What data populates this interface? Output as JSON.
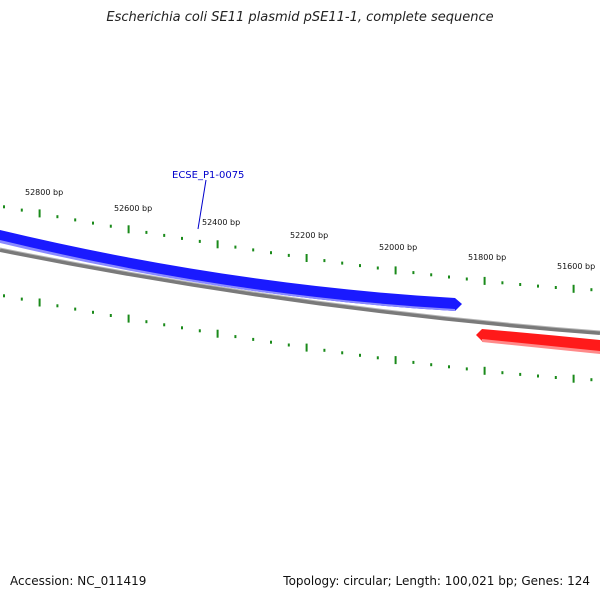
{
  "header": {
    "title": "Escherichia coli SE11 plasmid pSE11-1, complete sequence"
  },
  "map": {
    "bp_labels": [
      "52800 bp",
      "52600 bp",
      "52400 bp",
      "52200 bp",
      "52000 bp",
      "51800 bp",
      "51600 bp"
    ],
    "genes": [
      {
        "name": "ECSE_P1-0075",
        "strand": "forward",
        "color": "#1a1aff"
      },
      {
        "name": "",
        "strand": "reverse",
        "color": "#ff1a1a"
      }
    ],
    "backbone_color": "#7a7a7a",
    "tick_color": "#1a8a1a"
  },
  "footer": {
    "accession": "Accession: NC_011419",
    "summary": "Topology: circular; Length: 100,021 bp; Genes: 124"
  }
}
